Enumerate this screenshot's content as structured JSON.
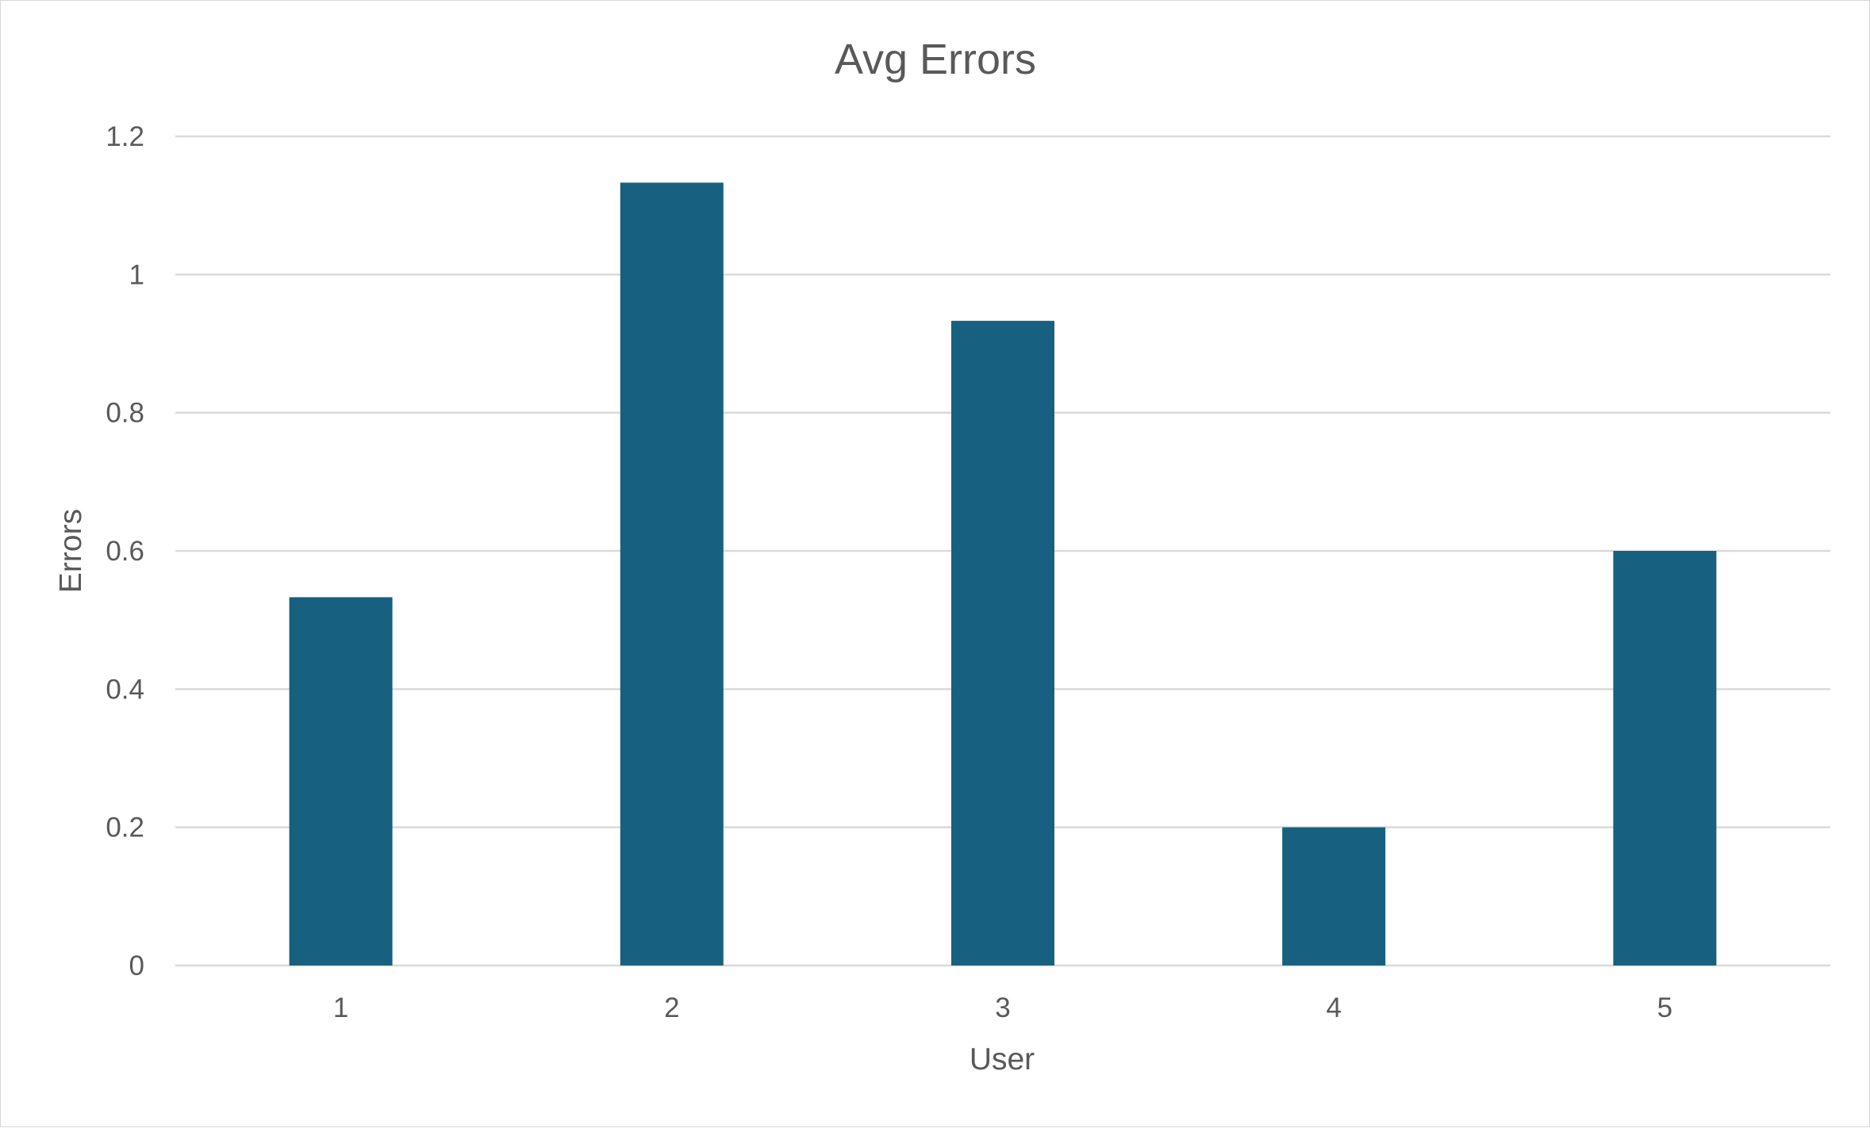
{
  "chart_data": {
    "type": "bar",
    "title": "Avg Errors",
    "xlabel": "User",
    "ylabel": "Errors",
    "categories": [
      "1",
      "2",
      "3",
      "4",
      "5"
    ],
    "values": [
      0.533,
      1.133,
      0.933,
      0.2,
      0.6
    ],
    "yticks": [
      "0",
      "0.2",
      "0.4",
      "0.6",
      "0.8",
      "1",
      "1.2"
    ],
    "ylim": [
      0,
      1.2
    ],
    "grid": true,
    "legend": "none",
    "bar_color": "#17607f",
    "grid_color": "#d9d9d9",
    "text_color": "#595959"
  }
}
